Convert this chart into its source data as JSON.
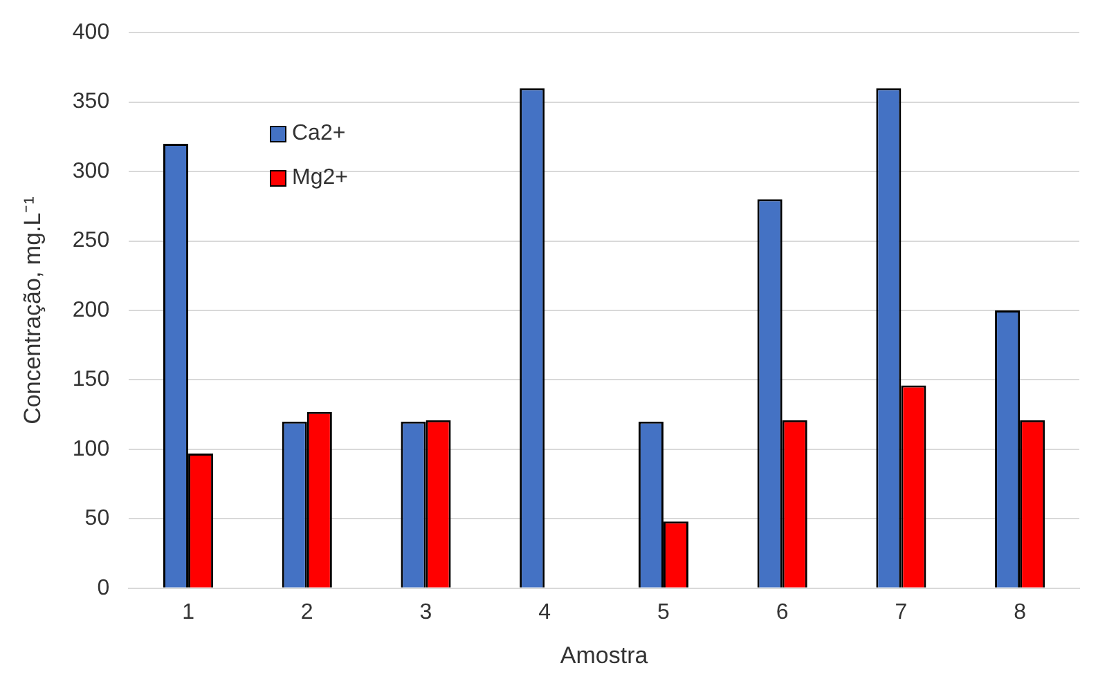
{
  "chart_data": {
    "type": "bar",
    "xlabel": "Amostra",
    "ylabel": "Concentração, mg.L⁻¹",
    "categories": [
      "1",
      "2",
      "3",
      "4",
      "5",
      "6",
      "7",
      "8"
    ],
    "series": [
      {
        "name": "Ca2+",
        "color": "#4472c4",
        "values": [
          320,
          120,
          120,
          360,
          120,
          280,
          360,
          200
        ]
      },
      {
        "name": "Mg2+",
        "color": "#ff0000",
        "values": [
          97,
          127,
          121,
          null,
          48,
          121,
          146,
          121
        ]
      }
    ],
    "ylim": [
      0,
      400
    ],
    "yticks": [
      0,
      50,
      100,
      150,
      200,
      250,
      300,
      350,
      400
    ],
    "grid": "y",
    "legend": "top left"
  }
}
